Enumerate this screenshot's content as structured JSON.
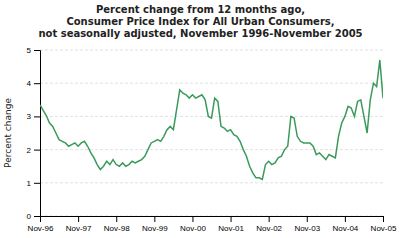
{
  "chart_data": {
    "type": "line",
    "title": "Percent change from 12 months ago,\nConsumer Price Index for All Urban Consumers,\nnot seasonally adjusted, November 1996-November 2005",
    "ylabel": "Percent change",
    "color": "#3a9a5c",
    "grid": true,
    "ylim": [
      0,
      5
    ],
    "yticks": [
      0,
      1,
      2,
      3,
      4,
      5
    ],
    "categories": [
      "Nov-96",
      null,
      null,
      null,
      null,
      null,
      null,
      null,
      null,
      null,
      null,
      null,
      "Nov-97",
      null,
      null,
      null,
      null,
      null,
      null,
      null,
      null,
      null,
      null,
      null,
      "Nov-98",
      null,
      null,
      null,
      null,
      null,
      null,
      null,
      null,
      null,
      null,
      null,
      "Nov-99",
      null,
      null,
      null,
      null,
      null,
      null,
      null,
      null,
      null,
      null,
      null,
      "Nov-00",
      null,
      null,
      null,
      null,
      null,
      null,
      null,
      null,
      null,
      null,
      null,
      "Nov-01",
      null,
      null,
      null,
      null,
      null,
      null,
      null,
      null,
      null,
      null,
      null,
      "Nov-02",
      null,
      null,
      null,
      null,
      null,
      null,
      null,
      null,
      null,
      null,
      null,
      "Nov-03",
      null,
      null,
      null,
      null,
      null,
      null,
      null,
      null,
      null,
      null,
      null,
      "Nov-04",
      null,
      null,
      null,
      null,
      null,
      null,
      null,
      null,
      null,
      null,
      null,
      "Nov-05"
    ],
    "values": [
      3.35,
      3.18,
      3.02,
      2.8,
      2.7,
      2.5,
      2.3,
      2.25,
      2.2,
      2.1,
      2.15,
      2.2,
      2.1,
      2.2,
      2.25,
      2.1,
      1.9,
      1.75,
      1.55,
      1.4,
      1.5,
      1.65,
      1.55,
      1.7,
      1.55,
      1.5,
      1.6,
      1.5,
      1.55,
      1.65,
      1.6,
      1.65,
      1.7,
      1.8,
      2.0,
      2.2,
      2.25,
      2.3,
      2.25,
      2.4,
      2.6,
      2.7,
      2.6,
      3.2,
      3.8,
      3.7,
      3.65,
      3.55,
      3.65,
      3.55,
      3.6,
      3.65,
      3.5,
      3.0,
      2.95,
      3.55,
      3.45,
      2.7,
      2.65,
      2.55,
      2.6,
      2.45,
      2.4,
      2.25,
      2.0,
      1.8,
      1.5,
      1.3,
      1.15,
      1.15,
      1.1,
      1.55,
      1.65,
      1.55,
      1.6,
      1.75,
      1.8,
      2.0,
      2.1,
      3.0,
      2.95,
      2.4,
      2.25,
      2.2,
      2.2,
      2.2,
      2.1,
      1.85,
      1.9,
      1.8,
      1.7,
      1.85,
      1.8,
      1.75,
      2.4,
      2.8,
      3.0,
      3.3,
      3.25,
      3.0,
      3.45,
      3.5,
      3.0,
      2.5,
      3.5,
      4.0,
      3.9,
      4.7,
      3.55
    ]
  }
}
